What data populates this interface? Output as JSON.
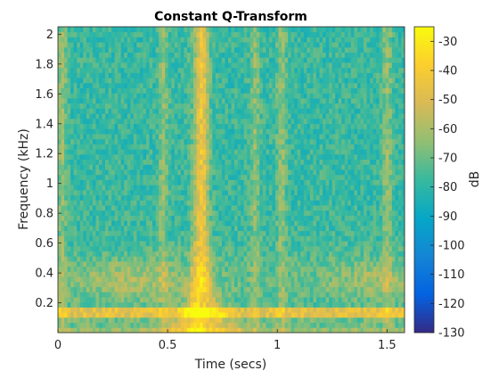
{
  "chart_data": {
    "type": "heatmap",
    "title": "Constant Q-Transform",
    "xlabel": "Time (secs)",
    "ylabel": "Frequency (kHz)",
    "colorbar_label": "dB",
    "xlim": [
      0,
      1.58
    ],
    "ylim": [
      0,
      2.05
    ],
    "clim": [
      -130,
      -25
    ],
    "xticks": [
      0,
      0.5,
      1,
      1.5
    ],
    "xtick_labels": [
      "0",
      "0.5",
      "1",
      "1.5"
    ],
    "yticks": [
      0.2,
      0.4,
      0.6,
      0.8,
      1,
      1.2,
      1.4,
      1.6,
      1.8,
      2
    ],
    "ytick_labels": [
      "0.2",
      "0.4",
      "0.6",
      "0.8",
      "1",
      "1.2",
      "1.4",
      "1.6",
      "1.8",
      "2"
    ],
    "cticks": [
      -30,
      -40,
      -50,
      -60,
      -70,
      -80,
      -90,
      -100,
      -110,
      -120,
      -130
    ],
    "ctick_labels": [
      "-30",
      "-40",
      "-50",
      "-60",
      "-70",
      "-80",
      "-90",
      "-100",
      "-110",
      "-120",
      "-130"
    ],
    "colormap": "parula",
    "colormap_stops": [
      "#352a87",
      "#0363e1",
      "#1485d4",
      "#06a7c6",
      "#38b99e",
      "#92bf73",
      "#d9ba56",
      "#fcce2e",
      "#f9fb0e"
    ],
    "features": {
      "low_band_khz": [
        0.1,
        0.18
      ],
      "strong_onset_secs": 0.66,
      "secondary_onsets_secs": [
        0.02,
        0.48,
        0.9,
        1.02,
        1.5
      ]
    }
  }
}
